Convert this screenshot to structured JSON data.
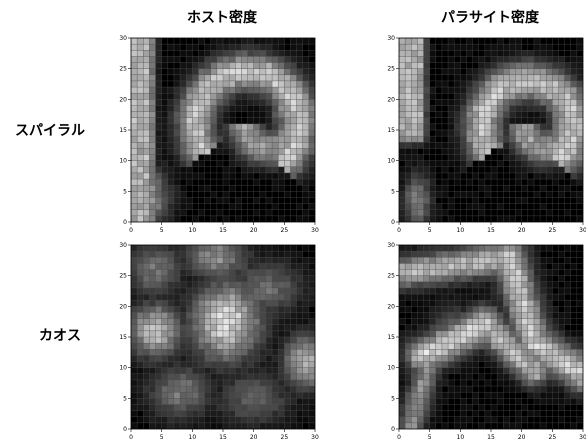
{
  "column_titles": [
    "ホスト密度",
    "パラサイト密度"
  ],
  "row_labels": [
    "スパイラル",
    "カオス"
  ],
  "colors": {
    "low": "#000000",
    "high": "#ffffff",
    "frame": "#000000",
    "grid": "#555555"
  },
  "chart_data": [
    {
      "type": "heatmap",
      "title": "ホスト密度",
      "row_label": "スパイラル",
      "xlim": [
        0,
        30
      ],
      "ylim": [
        0,
        30
      ],
      "xticks": [
        0,
        5,
        10,
        15,
        20,
        25,
        30
      ],
      "yticks": [
        0,
        5,
        10,
        15,
        20,
        25,
        30
      ],
      "blobs": [
        {
          "kind": "rect",
          "x": 1.5,
          "y": 15,
          "w": 2.5,
          "h": 30,
          "v": 0.75
        },
        {
          "kind": "arc",
          "cx": 19,
          "cy": 16,
          "r": 8.5,
          "t0": -50,
          "t1": 215,
          "w": 2.2,
          "v": 0.85
        },
        {
          "kind": "arc",
          "cx": 22.5,
          "cy": 16,
          "r": 4,
          "t0": -180,
          "t1": 60,
          "w": 2.0,
          "v": 0.7
        },
        {
          "kind": "spot",
          "x": 2.5,
          "y": 4,
          "sx": 2.5,
          "sy": 3.5,
          "v": 0.65
        }
      ]
    },
    {
      "type": "heatmap",
      "title": "パラサイト密度",
      "row_label": "スパイラル",
      "xlim": [
        0,
        30
      ],
      "ylim": [
        0,
        30
      ],
      "xticks": [
        0,
        5,
        10,
        15,
        20,
        25,
        30
      ],
      "yticks": [
        0,
        5,
        10,
        15,
        20,
        25,
        30
      ],
      "blobs": [
        {
          "kind": "rect",
          "x": 2,
          "y": 22,
          "w": 2.5,
          "h": 16,
          "v": 0.75
        },
        {
          "kind": "arc",
          "cx": 21,
          "cy": 15.5,
          "r": 7.5,
          "t0": -50,
          "t1": 215,
          "w": 2.2,
          "v": 0.85
        },
        {
          "kind": "arc",
          "cx": 24,
          "cy": 15.5,
          "r": 3.5,
          "t0": -180,
          "t1": 60,
          "w": 2.0,
          "v": 0.7
        },
        {
          "kind": "spot",
          "x": 3,
          "y": 3.5,
          "sx": 1.5,
          "sy": 3,
          "v": 0.55
        }
      ]
    },
    {
      "type": "heatmap",
      "title": "ホスト密度",
      "row_label": "カオス",
      "xlim": [
        0,
        30
      ],
      "ylim": [
        0,
        30
      ],
      "xticks": [
        0,
        5,
        10,
        15,
        20,
        25,
        30
      ],
      "yticks": [
        0,
        5,
        10,
        15,
        20,
        25,
        30
      ],
      "blobs": [
        {
          "kind": "spot",
          "x": 15.5,
          "y": 17.5,
          "sx": 4,
          "sy": 4.5,
          "v": 0.95
        },
        {
          "kind": "spot",
          "x": 4,
          "y": 16,
          "sx": 3,
          "sy": 3,
          "v": 0.85
        },
        {
          "kind": "spot",
          "x": 28.5,
          "y": 11,
          "sx": 2.5,
          "sy": 3,
          "v": 0.8
        },
        {
          "kind": "spot",
          "x": 14,
          "y": 28,
          "sx": 3.5,
          "sy": 2.5,
          "v": 0.6
        },
        {
          "kind": "spot",
          "x": 22,
          "y": 23,
          "sx": 4,
          "sy": 3,
          "v": 0.45
        },
        {
          "kind": "spot",
          "x": 8,
          "y": 6,
          "sx": 3.5,
          "sy": 3,
          "v": 0.5
        },
        {
          "kind": "spot",
          "x": 20,
          "y": 5,
          "sx": 4,
          "sy": 3,
          "v": 0.4
        },
        {
          "kind": "spot",
          "x": 4,
          "y": 26,
          "sx": 3,
          "sy": 3,
          "v": 0.5
        }
      ]
    },
    {
      "type": "heatmap",
      "title": "パラサイト密度",
      "row_label": "カオス",
      "xlim": [
        0,
        30
      ],
      "ylim": [
        0,
        30
      ],
      "xticks": [
        0,
        5,
        10,
        15,
        20,
        25,
        30
      ],
      "yticks": [
        0,
        5,
        10,
        15,
        20,
        25,
        30
      ],
      "blobs": [
        {
          "kind": "line",
          "x0": 1,
          "y0": 25.5,
          "x1": 18,
          "y1": 28,
          "w": 1.8,
          "v": 0.8
        },
        {
          "kind": "line",
          "x0": 18,
          "y0": 28,
          "x1": 22,
          "y1": 14,
          "w": 2.0,
          "v": 0.85
        },
        {
          "kind": "line",
          "x0": 22,
          "y0": 14,
          "x1": 30,
          "y1": 9,
          "w": 2.0,
          "v": 0.9
        },
        {
          "kind": "line",
          "x0": 4,
          "y0": 12,
          "x1": 14,
          "y1": 17,
          "w": 2.0,
          "v": 0.9
        },
        {
          "kind": "line",
          "x0": 14,
          "y0": 17,
          "x1": 22,
          "y1": 9.5,
          "w": 1.8,
          "v": 0.8
        },
        {
          "kind": "line",
          "x0": 5,
          "y0": 11,
          "x1": 2,
          "y1": 1,
          "w": 1.5,
          "v": 0.6
        },
        {
          "kind": "spot",
          "x": 9,
          "y": 16.5,
          "sx": 2.5,
          "sy": 2.5,
          "v": 0.4
        }
      ]
    }
  ]
}
